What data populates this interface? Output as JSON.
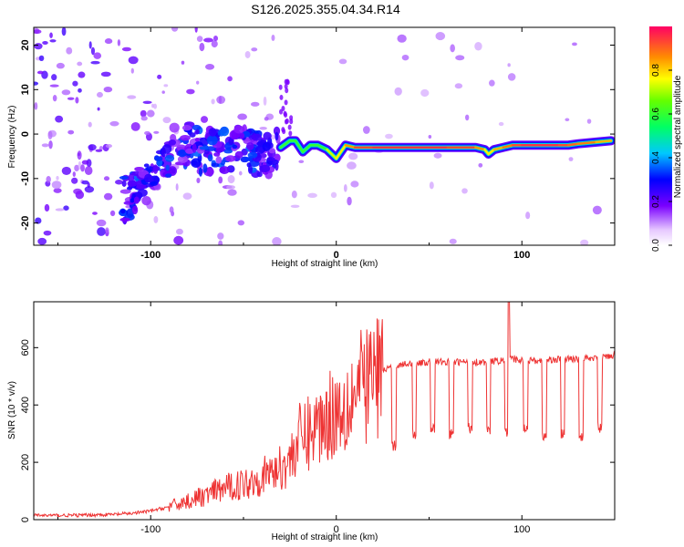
{
  "title": "S126.2025.355.04.34.R14",
  "chart_data": [
    {
      "type": "heatmap",
      "name": "spectrogram",
      "xlabel": "Height of straight line (km)",
      "ylabel": "Frequency (Hz)",
      "xlim": [
        -163,
        150
      ],
      "ylim": [
        -25,
        24
      ],
      "xticks": [
        -100,
        0,
        100
      ],
      "yticks": [
        -20,
        -10,
        0,
        10,
        20
      ],
      "colorbar": {
        "label": "Normalized spectral amplitude",
        "range": [
          0,
          1
        ],
        "ticks": [
          0.0,
          0.2,
          0.4,
          0.6,
          0.8
        ],
        "tick_labels": [
          "0.0",
          "0.2",
          "0.4",
          "0.6",
          "0.8"
        ]
      },
      "ridge_line": {
        "x": [
          -30,
          -25,
          -22,
          -18,
          -14,
          -10,
          -5,
          0,
          5,
          10,
          20,
          40,
          60,
          75,
          80,
          82,
          85,
          90,
          95,
          100,
          110,
          120,
          125,
          130,
          140,
          148
        ],
        "y": [
          -3,
          -1.5,
          -1.5,
          -4,
          -2.5,
          -2.5,
          -3.5,
          -5.5,
          -2.5,
          -3,
          -3,
          -3,
          -3,
          -3,
          -3.5,
          -4.5,
          -3.5,
          -3,
          -2.5,
          -2.5,
          -2.5,
          -2.5,
          -2.5,
          -2.2,
          -1.8,
          -1.5
        ],
        "amplitude": [
          0.5,
          0.6,
          0.6,
          0.55,
          0.6,
          0.65,
          0.7,
          0.75,
          0.8,
          0.9,
          0.95,
          0.95,
          0.95,
          0.9,
          0.8,
          0.75,
          0.8,
          0.85,
          0.9,
          0.95,
          0.95,
          0.95,
          0.9,
          0.9,
          0.85,
          0.8
        ]
      }
    },
    {
      "type": "line",
      "name": "snr",
      "xlabel": "Height of straight line (km)",
      "ylabel": "SNR (10 * v/v)",
      "xlim": [
        -163,
        150
      ],
      "ylim": [
        0,
        760
      ],
      "xticks": [
        -100,
        0,
        100
      ],
      "yticks": [
        0,
        200,
        400,
        600
      ],
      "color": "#ee3333",
      "envelope": {
        "x": [
          -163,
          -140,
          -120,
          -110,
          -100,
          -90,
          -80,
          -70,
          -60,
          -50,
          -40,
          -30,
          -25,
          -20,
          -15,
          -10,
          -5,
          0,
          5,
          10,
          15,
          20,
          25,
          30,
          35,
          40,
          45,
          50,
          60,
          70,
          80,
          90,
          95,
          100,
          110,
          120,
          130,
          140,
          150
        ],
        "y": [
          15,
          15,
          18,
          22,
          30,
          45,
          65,
          85,
          110,
          125,
          150,
          180,
          210,
          280,
          300,
          330,
          360,
          380,
          410,
          440,
          470,
          500,
          520,
          535,
          540,
          545,
          545,
          550,
          550,
          550,
          550,
          555,
          560,
          555,
          555,
          560,
          560,
          565,
          575
        ]
      },
      "dips": [
        {
          "x": 31,
          "y": 260
        },
        {
          "x": 42,
          "y": 300
        },
        {
          "x": 52,
          "y": 320
        },
        {
          "x": 62,
          "y": 300
        },
        {
          "x": 72,
          "y": 320
        },
        {
          "x": 82,
          "y": 310
        },
        {
          "x": 92,
          "y": 300
        },
        {
          "x": 102,
          "y": 320
        },
        {
          "x": 112,
          "y": 290
        },
        {
          "x": 122,
          "y": 300
        },
        {
          "x": 132,
          "y": 290
        },
        {
          "x": 142,
          "y": 320
        }
      ],
      "peak": {
        "x": 93,
        "y": 760
      }
    }
  ]
}
